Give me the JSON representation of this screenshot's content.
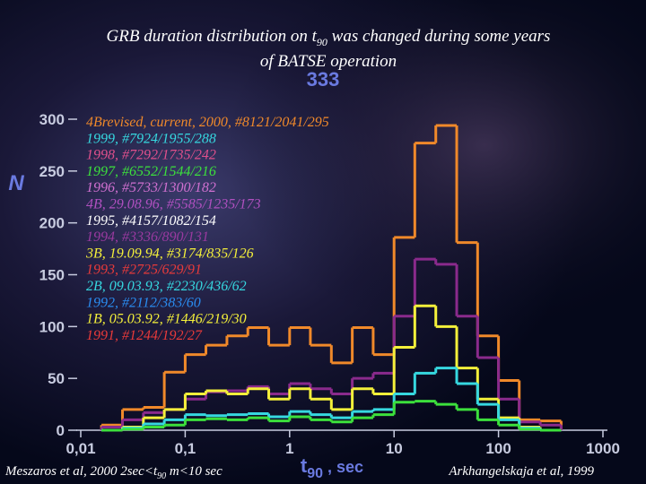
{
  "chart_data": {
    "type": "histogram",
    "title_parts": [
      "GRB duration distribution on t",
      "90",
      " was changed during some years",
      "of BATSE operation"
    ],
    "annotation": "333",
    "ylabel": "N",
    "xlabel_parts": [
      "t",
      "90",
      " , sec"
    ],
    "footer_left_parts": [
      "Meszaros et al, 2000 2sec<t",
      "90",
      " m<10 sec"
    ],
    "footer_right": "Arkhangelskaja et al, 1999",
    "log_x": true,
    "xlim": [
      0.01,
      1000
    ],
    "xticks": [
      {
        "value": 0.01,
        "label": "0,01"
      },
      {
        "value": 0.1,
        "label": "0,1"
      },
      1,
      10,
      100,
      1000
    ],
    "ylim": [
      0,
      300
    ],
    "yticks": [
      0,
      50,
      100,
      150,
      200,
      250,
      300
    ],
    "bins": [
      0.0158,
      0.0251,
      0.0398,
      0.0631,
      0.1,
      0.158,
      0.251,
      0.398,
      0.631,
      1,
      1.58,
      2.51,
      3.98,
      6.31,
      10,
      15.8,
      25.1,
      39.8,
      63.1,
      100,
      158,
      251,
      398
    ],
    "series": [
      {
        "color": "#f0892a",
        "values": [
          5,
          20,
          22,
          56,
          73,
          82,
          91,
          99,
          82,
          99,
          82,
          65,
          99,
          73,
          186,
          277,
          294,
          181,
          91,
          48,
          10,
          9
        ]
      },
      {
        "color": "#8a2a8c",
        "values": [
          3,
          10,
          17,
          20,
          30,
          37,
          38,
          42,
          35,
          45,
          40,
          35,
          50,
          55,
          110,
          165,
          160,
          110,
          70,
          30,
          8,
          5
        ]
      },
      {
        "color": "#f4f03a",
        "values": [
          0,
          3,
          12,
          20,
          35,
          38,
          35,
          40,
          30,
          40,
          30,
          20,
          40,
          35,
          80,
          120,
          100,
          60,
          30,
          12,
          3,
          0
        ]
      },
      {
        "color": "#36d8e0",
        "values": [
          0,
          2,
          6,
          10,
          15,
          14,
          15,
          16,
          13,
          18,
          15,
          12,
          18,
          20,
          35,
          55,
          60,
          45,
          25,
          10,
          2,
          0
        ]
      },
      {
        "color": "#3ce03c",
        "values": [
          0,
          1,
          3,
          5,
          10,
          11,
          10,
          12,
          9,
          13,
          10,
          8,
          12,
          15,
          27,
          28,
          25,
          20,
          10,
          5,
          1,
          0
        ]
      }
    ],
    "legend_entries": [
      {
        "text": "4Brevised, current, 2000, #8121/2041/295",
        "color": "#f0892a"
      },
      {
        "text": "1999, #7924/1955/288",
        "color": "#36d8e0"
      },
      {
        "text": "1998, #7292/1735/242",
        "color": "#e0508c"
      },
      {
        "text": "1997, #6552/1544/216",
        "color": "#3ce03c"
      },
      {
        "text": "1996, #5733/1300/182",
        "color": "#d070d0"
      },
      {
        "text": "4B, 29.08.96, #5585/1235/173",
        "color": "#b050c0"
      },
      {
        "text": "1995, #4157/1082/154",
        "color": "#ffffff"
      },
      {
        "text": "1994, #3336/890/131",
        "color": "#9a3aa0"
      },
      {
        "text": "3B, 19.09.94, #3174/835/126",
        "color": "#f4f03a"
      },
      {
        "text": "1993, #2725/629/91",
        "color": "#e83a3a"
      },
      {
        "text": "2B, 09.03.93, #2230/436/62",
        "color": "#36d8e0"
      },
      {
        "text": "1992, #2112/383/60",
        "color": "#2a8cf0"
      },
      {
        "text": "1B, 05.03.92, #1446/219/30",
        "color": "#f4f03a"
      },
      {
        "text": "1991, #1244/192/27",
        "color": "#e83a3a"
      }
    ]
  }
}
